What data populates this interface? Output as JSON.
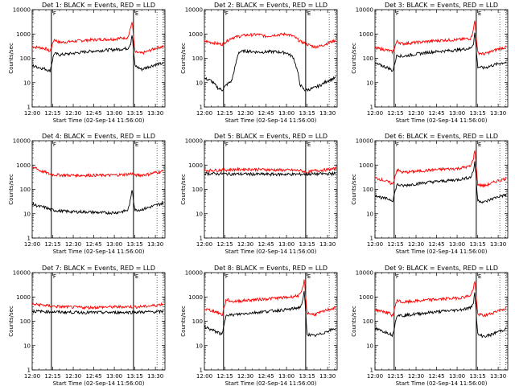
{
  "chart_data": {
    "type": "line",
    "x_tick_labels": [
      "12:00",
      "12:15",
      "12:30",
      "12:45",
      "13:00",
      "13:15",
      "13:30"
    ],
    "x_ticks_minutes": [
      0,
      15,
      30,
      45,
      60,
      75,
      90
    ],
    "xlim_minutes": [
      0,
      97
    ],
    "y_tick_labels": [
      "1",
      "10",
      "100",
      "1000",
      "10000"
    ],
    "ylim": [
      1,
      10000
    ],
    "yscale": "log",
    "ylabel": "Counts/sec",
    "xlabel": "Start Time (02-Sep-14 11:56:00)",
    "time_axis_start": "12:00",
    "marker_labels": {
      "start": "F",
      "end": "E"
    },
    "colors": {
      "events": "#000000",
      "lld": "#ff0000"
    },
    "panels": [
      {
        "title": "Det 1: BLACK = Events, RED = LLD",
        "flag_minutes": [
          14,
          74
        ],
        "events": {
          "x": [
            0,
            5,
            10,
            13,
            16,
            20,
            30,
            40,
            50,
            60,
            65,
            70,
            72,
            73,
            75,
            80,
            85,
            90,
            96
          ],
          "y": [
            50,
            42,
            36,
            30,
            160,
            140,
            160,
            190,
            210,
            230,
            240,
            260,
            420,
            1000,
            50,
            35,
            45,
            55,
            62
          ]
        },
        "lld": {
          "x": [
            0,
            5,
            10,
            13,
            16,
            20,
            30,
            40,
            50,
            60,
            65,
            70,
            72,
            73,
            75,
            80,
            85,
            90,
            96
          ],
          "y": [
            300,
            280,
            250,
            190,
            600,
            450,
            500,
            560,
            600,
            620,
            680,
            720,
            1800,
            3500,
            180,
            160,
            200,
            260,
            310
          ]
        }
      },
      {
        "title": "Det 2: BLACK = Events, RED = LLD",
        "flag_minutes": [
          14,
          74
        ],
        "events": {
          "x": [
            0,
            5,
            10,
            13,
            16,
            20,
            25,
            30,
            40,
            50,
            60,
            65,
            68,
            70,
            73,
            75,
            80,
            85,
            90,
            96
          ],
          "y": [
            15,
            12,
            6,
            5,
            8,
            12,
            180,
            200,
            180,
            190,
            170,
            110,
            30,
            8,
            5,
            5,
            6,
            8,
            12,
            16
          ]
        },
        "lld": {
          "x": [
            0,
            5,
            10,
            13,
            16,
            20,
            30,
            40,
            45,
            50,
            60,
            65,
            70,
            75,
            80,
            85,
            90,
            96
          ],
          "y": [
            500,
            450,
            400,
            380,
            500,
            700,
            900,
            950,
            800,
            900,
            1000,
            800,
            500,
            380,
            300,
            320,
            420,
            560
          ]
        }
      },
      {
        "title": "Det 3: BLACK = Events, RED = LLD",
        "flag_minutes": [
          14,
          74
        ],
        "events": {
          "x": [
            0,
            5,
            10,
            13,
            16,
            20,
            30,
            40,
            50,
            60,
            65,
            70,
            72,
            73,
            75,
            80,
            85,
            90,
            96
          ],
          "y": [
            60,
            50,
            40,
            30,
            140,
            120,
            150,
            180,
            200,
            220,
            240,
            260,
            420,
            1200,
            45,
            40,
            50,
            60,
            70
          ]
        },
        "lld": {
          "x": [
            0,
            5,
            10,
            13,
            16,
            20,
            30,
            40,
            50,
            60,
            65,
            70,
            72,
            73,
            75,
            80,
            85,
            90,
            96
          ],
          "y": [
            260,
            240,
            210,
            180,
            500,
            400,
            450,
            500,
            560,
            580,
            620,
            660,
            1600,
            3800,
            170,
            150,
            190,
            240,
            290
          ]
        }
      },
      {
        "title": "Det 4: BLACK = Events, RED = LLD",
        "flag_minutes": [
          14,
          74
        ],
        "events": {
          "x": [
            0,
            5,
            10,
            13,
            16,
            20,
            30,
            40,
            50,
            60,
            65,
            70,
            72,
            73,
            75,
            80,
            85,
            90,
            96
          ],
          "y": [
            25,
            20,
            18,
            15,
            14,
            13,
            12,
            12,
            11,
            11,
            12,
            14,
            40,
            110,
            14,
            15,
            18,
            22,
            28
          ]
        },
        "lld": {
          "x": [
            0,
            3,
            5,
            10,
            13,
            16,
            20,
            30,
            40,
            50,
            60,
            65,
            70,
            73,
            75,
            80,
            85,
            90,
            96
          ],
          "y": [
            700,
            800,
            600,
            500,
            420,
            400,
            390,
            380,
            380,
            380,
            390,
            400,
            420,
            450,
            380,
            390,
            420,
            500,
            560
          ]
        }
      },
      {
        "title": "Det 5: BLACK = Events, RED = LLD",
        "flag_minutes": [
          14,
          74
        ],
        "events": {
          "x": [
            0,
            10,
            20,
            30,
            40,
            50,
            60,
            70,
            80,
            90,
            96
          ],
          "y": [
            450,
            440,
            430,
            430,
            420,
            420,
            420,
            420,
            430,
            440,
            450
          ]
        },
        "lld": {
          "x": [
            0,
            10,
            20,
            30,
            40,
            50,
            60,
            70,
            75,
            80,
            90,
            96
          ],
          "y": [
            600,
            620,
            650,
            680,
            660,
            640,
            620,
            600,
            500,
            580,
            650,
            700
          ]
        }
      },
      {
        "title": "Det 6: BLACK = Events, RED = LLD",
        "flag_minutes": [
          14,
          74
        ],
        "events": {
          "x": [
            0,
            5,
            10,
            13,
            16,
            20,
            30,
            40,
            50,
            60,
            65,
            70,
            72,
            73,
            75,
            80,
            85,
            90,
            96
          ],
          "y": [
            60,
            45,
            40,
            35,
            160,
            140,
            170,
            200,
            220,
            250,
            280,
            320,
            600,
            1500,
            35,
            30,
            40,
            50,
            60
          ]
        },
        "lld": {
          "x": [
            0,
            5,
            10,
            13,
            16,
            20,
            30,
            40,
            50,
            60,
            65,
            70,
            72,
            73,
            75,
            80,
            85,
            90,
            96
          ],
          "y": [
            300,
            250,
            200,
            160,
            650,
            500,
            550,
            620,
            680,
            720,
            800,
            900,
            2000,
            4500,
            160,
            140,
            180,
            230,
            280
          ]
        }
      },
      {
        "title": "Det 7: BLACK = Events, RED = LLD",
        "flag_minutes": [
          14,
          74
        ],
        "events": {
          "x": [
            0,
            10,
            20,
            30,
            40,
            50,
            60,
            70,
            80,
            90,
            96
          ],
          "y": [
            260,
            250,
            240,
            235,
            230,
            230,
            230,
            235,
            240,
            245,
            250
          ]
        },
        "lld": {
          "x": [
            0,
            5,
            10,
            14,
            20,
            30,
            40,
            50,
            60,
            70,
            75,
            80,
            90,
            96
          ],
          "y": [
            500,
            480,
            450,
            420,
            400,
            380,
            370,
            380,
            390,
            400,
            390,
            400,
            450,
            520
          ]
        }
      },
      {
        "title": "Det 8: BLACK = Events, RED = LLD",
        "flag_minutes": [
          14,
          74
        ],
        "events": {
          "x": [
            0,
            5,
            10,
            13,
            16,
            20,
            30,
            40,
            50,
            60,
            65,
            70,
            72,
            73,
            75,
            80,
            85,
            90,
            96
          ],
          "y": [
            60,
            45,
            35,
            28,
            200,
            180,
            210,
            240,
            270,
            300,
            330,
            380,
            700,
            1800,
            30,
            25,
            30,
            40,
            50
          ]
        },
        "lld": {
          "x": [
            0,
            5,
            10,
            13,
            16,
            20,
            30,
            40,
            50,
            60,
            65,
            70,
            72,
            73,
            75,
            80,
            85,
            90,
            96
          ],
          "y": [
            320,
            280,
            230,
            180,
            800,
            650,
            720,
            800,
            880,
            950,
            1050,
            1200,
            2500,
            5000,
            220,
            190,
            230,
            300,
            360
          ]
        }
      },
      {
        "title": "Det 9: BLACK = Events, RED = LLD",
        "flag_minutes": [
          14,
          74
        ],
        "events": {
          "x": [
            0,
            5,
            10,
            13,
            16,
            20,
            30,
            40,
            50,
            60,
            65,
            70,
            72,
            73,
            75,
            80,
            85,
            90,
            96
          ],
          "y": [
            50,
            40,
            33,
            27,
            190,
            170,
            200,
            230,
            260,
            290,
            320,
            360,
            650,
            1600,
            28,
            24,
            28,
            38,
            48
          ]
        },
        "lld": {
          "x": [
            0,
            5,
            10,
            13,
            16,
            20,
            30,
            40,
            50,
            60,
            65,
            70,
            72,
            73,
            75,
            80,
            85,
            90,
            96
          ],
          "y": [
            300,
            260,
            220,
            170,
            750,
            600,
            680,
            760,
            830,
            900,
            1000,
            1150,
            2400,
            4600,
            200,
            170,
            210,
            280,
            340
          ]
        }
      }
    ]
  }
}
